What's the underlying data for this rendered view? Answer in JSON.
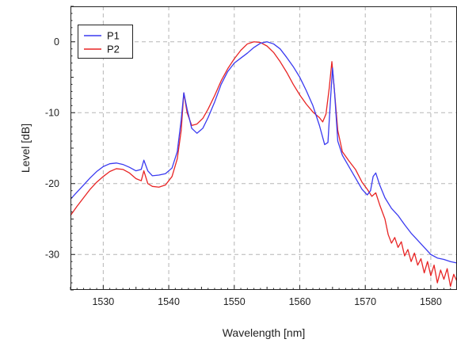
{
  "chart_data": {
    "type": "line",
    "xlabel": "Wavelength [nm]",
    "ylabel": "Level [dB]",
    "xlim": [
      1525,
      1584
    ],
    "ylim": [
      -35,
      5
    ],
    "x_ticks": [
      1530,
      1540,
      1550,
      1560,
      1570,
      1580
    ],
    "y_ticks": [
      0,
      -10,
      -20,
      -30
    ],
    "grid": true,
    "legend_position": "top-left",
    "series": [
      {
        "name": "P1",
        "color": "#3a3af0",
        "x": [
          1525,
          1526,
          1527,
          1528,
          1529,
          1530,
          1531,
          1532,
          1533,
          1534,
          1535,
          1535.8,
          1536.2,
          1536.8,
          1537.5,
          1538.5,
          1539.5,
          1540.5,
          1541.3,
          1541.9,
          1542.3,
          1542.8,
          1543.5,
          1544.3,
          1545.2,
          1546,
          1547,
          1548,
          1549,
          1550,
          1551,
          1552,
          1553,
          1554,
          1555,
          1556,
          1557,
          1558,
          1559,
          1560,
          1561,
          1562,
          1563,
          1563.8,
          1564.3,
          1564.7,
          1565,
          1565.3,
          1565.8,
          1566.5,
          1567.5,
          1568.5,
          1569.5,
          1570.3,
          1570.8,
          1571.2,
          1571.6,
          1572.2,
          1573,
          1574,
          1575,
          1576,
          1577,
          1578,
          1579,
          1580,
          1581,
          1582,
          1583,
          1584
        ],
        "values": [
          -22.2,
          -21.2,
          -20.2,
          -19.2,
          -18.3,
          -17.6,
          -17.2,
          -17.1,
          -17.3,
          -17.7,
          -18.2,
          -18.0,
          -16.7,
          -18.2,
          -18.9,
          -18.8,
          -18.6,
          -17.8,
          -15.5,
          -11.0,
          -7.2,
          -9.5,
          -12.2,
          -12.9,
          -12.2,
          -10.7,
          -8.5,
          -6.0,
          -4.2,
          -3.0,
          -2.3,
          -1.6,
          -0.8,
          -0.2,
          0.0,
          -0.3,
          -1.0,
          -2.2,
          -3.5,
          -5.0,
          -6.9,
          -9.0,
          -11.8,
          -14.5,
          -14.2,
          -8.0,
          -3.7,
          -7.0,
          -14.0,
          -16.0,
          -17.6,
          -19.2,
          -20.8,
          -21.6,
          -21.0,
          -19.0,
          -18.5,
          -20.2,
          -22.0,
          -23.5,
          -24.5,
          -25.8,
          -27.0,
          -28.0,
          -29.0,
          -30.0,
          -30.5,
          -30.7,
          -31.0,
          -31.2
        ]
      },
      {
        "name": "P2",
        "color": "#e82424",
        "x": [
          1525,
          1526,
          1527,
          1528,
          1529,
          1530,
          1531,
          1532,
          1533,
          1534,
          1535,
          1535.8,
          1536.2,
          1536.8,
          1537.5,
          1538.5,
          1539.5,
          1540.5,
          1541.3,
          1541.9,
          1542.3,
          1542.8,
          1543.5,
          1544.3,
          1545.2,
          1546,
          1547,
          1548,
          1549,
          1550,
          1551,
          1552,
          1553,
          1554,
          1555,
          1556,
          1557,
          1558,
          1559,
          1560,
          1561,
          1562,
          1563,
          1563.5,
          1564,
          1564.5,
          1564.9,
          1565.3,
          1565.8,
          1566.5,
          1567.5,
          1568.5,
          1569.5,
          1570.3,
          1571,
          1571.6,
          1572.2,
          1573,
          1573.5,
          1574,
          1574.5,
          1575,
          1575.5,
          1576,
          1576.5,
          1577,
          1577.5,
          1578,
          1578.5,
          1579,
          1579.5,
          1580,
          1580.5,
          1581,
          1581.5,
          1582,
          1582.5,
          1583,
          1583.5,
          1584
        ],
        "values": [
          -24.5,
          -23.2,
          -22.0,
          -20.8,
          -19.8,
          -19.0,
          -18.3,
          -17.9,
          -18.0,
          -18.5,
          -19.3,
          -19.6,
          -18.2,
          -20.0,
          -20.4,
          -20.5,
          -20.2,
          -19.0,
          -16.5,
          -12.5,
          -7.2,
          -10.0,
          -11.8,
          -11.6,
          -10.8,
          -9.5,
          -7.6,
          -5.5,
          -3.8,
          -2.4,
          -1.2,
          -0.3,
          0.0,
          -0.1,
          -0.6,
          -1.5,
          -2.8,
          -4.3,
          -6.0,
          -7.5,
          -8.8,
          -9.9,
          -10.7,
          -11.3,
          -10.2,
          -6.5,
          -2.8,
          -7.0,
          -12.5,
          -15.5,
          -16.8,
          -18.0,
          -19.8,
          -20.8,
          -21.8,
          -21.3,
          -23.0,
          -25.0,
          -27.2,
          -28.4,
          -27.6,
          -29.0,
          -28.2,
          -30.2,
          -29.3,
          -31.0,
          -29.8,
          -31.5,
          -30.6,
          -32.6,
          -31.0,
          -33.0,
          -31.5,
          -34.0,
          -32.2,
          -33.5,
          -32.0,
          -34.5,
          -32.8,
          -33.8
        ]
      }
    ]
  }
}
